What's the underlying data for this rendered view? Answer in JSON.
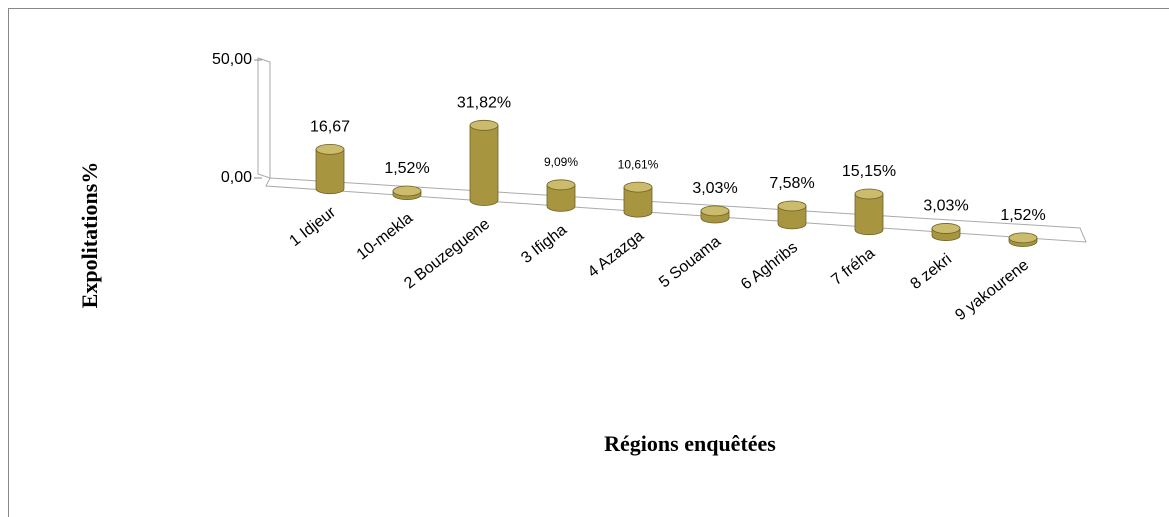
{
  "chart_data": {
    "type": "bar3d",
    "xlabel": "Régions enquêtées",
    "ylabel": "Expolitations%",
    "categories": [
      "1 Idjeur",
      "10-mekla",
      "2 Bouzeguene",
      "3 Ifigha",
      "4 Azazga",
      "5 Souama",
      "6 Aghribs",
      "7 fréha",
      "8 zekri",
      "9 yakourene"
    ],
    "values": [
      16.67,
      1.52,
      31.82,
      9.09,
      10.61,
      3.03,
      7.58,
      15.15,
      3.03,
      1.52
    ],
    "value_labels": [
      "16,67",
      "1,52%",
      "31,82%",
      "9,09%",
      "10,61%",
      "3,03%",
      "7,58%",
      "15,15%",
      "3,03%",
      "1,52%"
    ],
    "color": "#a89540",
    "ylim": [
      0,
      50
    ],
    "yticks": [
      {
        "value": 0,
        "label": "0,00"
      },
      {
        "value": 50,
        "label": "50,00"
      }
    ]
  }
}
